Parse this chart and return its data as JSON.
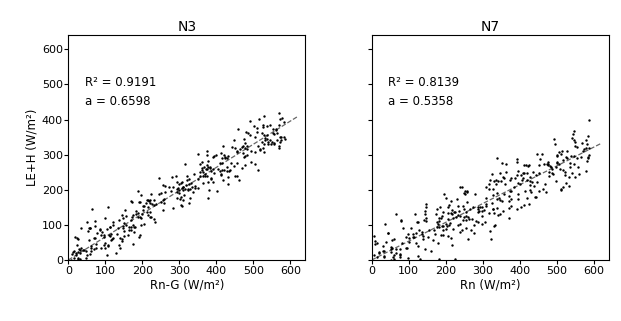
{
  "n3": {
    "title": "N3",
    "xlabel": "Rn-G (W/m²)",
    "ylabel": "LE+H (W/m²)",
    "r2": 0.9191,
    "a": 0.6598,
    "xlim": [
      0,
      640
    ],
    "ylim": [
      0,
      640
    ],
    "xticks": [
      0,
      100,
      200,
      300,
      400,
      500,
      600
    ],
    "yticks": [
      0,
      100,
      200,
      300,
      400,
      500,
      600
    ],
    "seed": 42,
    "n_points": 350
  },
  "n7": {
    "title": "N7",
    "xlabel": "Rn (W/m²)",
    "ylabel": "LE+H (W/m²)",
    "r2": 0.8139,
    "a": 0.5358,
    "xlim": [
      0,
      640
    ],
    "ylim": [
      0,
      640
    ],
    "xticks": [
      0,
      100,
      200,
      300,
      400,
      500,
      600
    ],
    "yticks": [
      0,
      100,
      200,
      300,
      400,
      500,
      600
    ],
    "seed": 123,
    "n_points": 350
  },
  "dot_color": "#000000",
  "line_color": "#666666",
  "dot_size": 3,
  "annotation_color": "#000000",
  "fig_bg": "#ffffff",
  "title_fontsize": 10,
  "label_fontsize": 8.5,
  "tick_fontsize": 8,
  "annotation_fontsize": 8.5
}
